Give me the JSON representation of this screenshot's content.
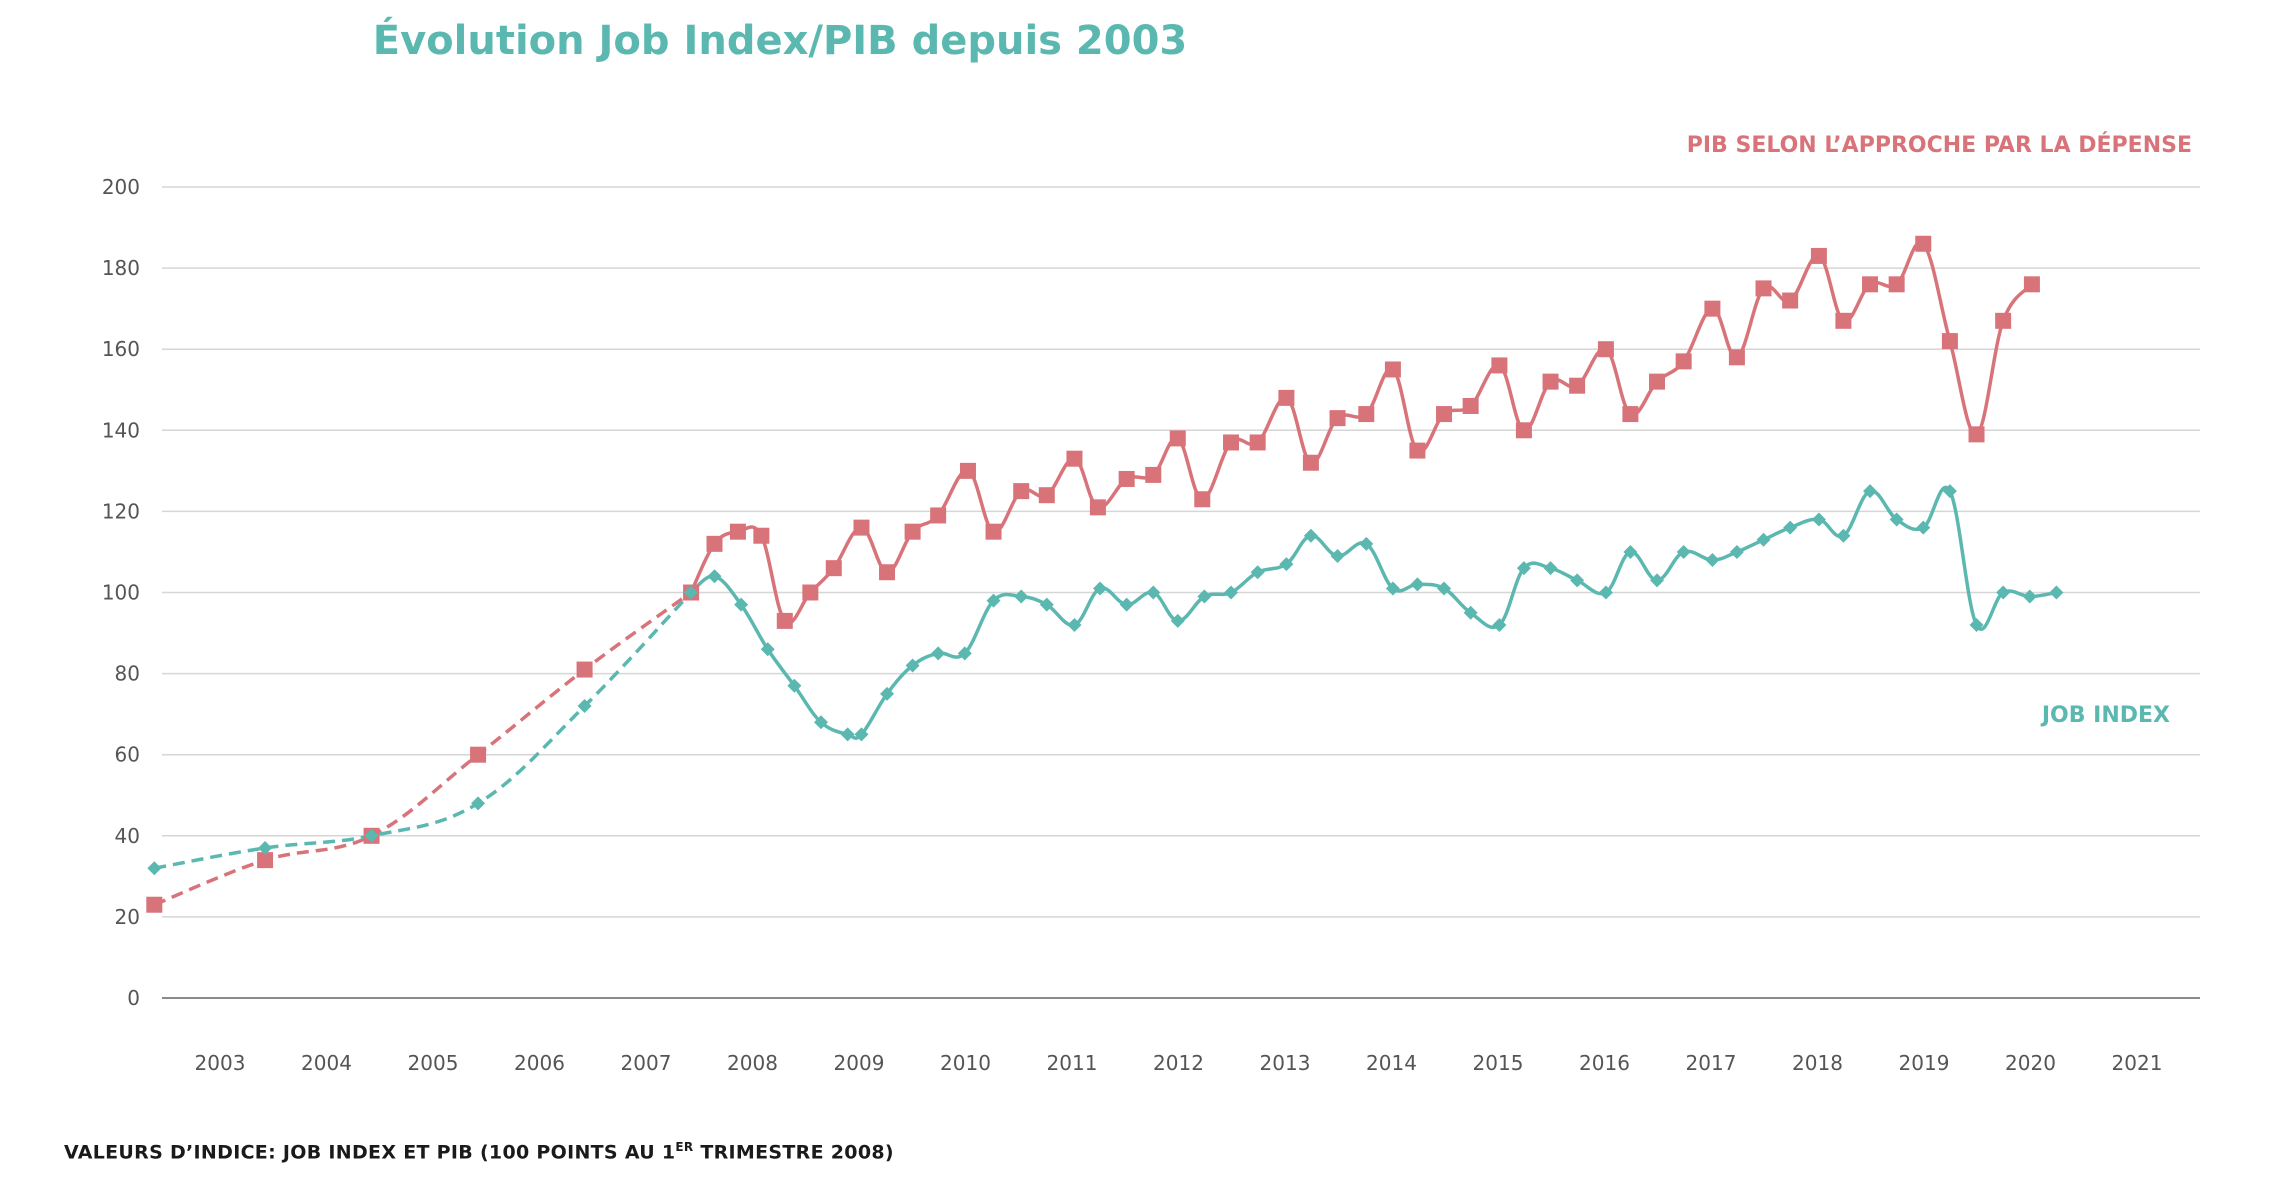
{
  "chart_data": {
    "type": "line",
    "title": "Évolution Job Index/PIB depuis 2003",
    "footnote_main": "VALEURS D’INDICE: JOB INDEX ET PIB (100 POINTS AU 1",
    "footnote_sup": "ER",
    "footnote_end": " TRIMESTRE 2008)",
    "xlabel": "",
    "ylabel": "",
    "ylim": [
      0,
      200
    ],
    "yticks": [
      0,
      20,
      40,
      60,
      80,
      100,
      120,
      140,
      160,
      180,
      200
    ],
    "xlim": [
      2002.5,
      2021.2
    ],
    "xticks": [
      2003,
      2004,
      2005,
      2006,
      2007,
      2008,
      2009,
      2010,
      2011,
      2012,
      2013,
      2014,
      2015,
      2016,
      2017,
      2018,
      2019,
      2020,
      2021
    ],
    "grid": true,
    "series": [
      {
        "name": "PIB SELON L’APPROCHE PAR LA DÉPENSE",
        "color": "#d9737a",
        "marker": "square",
        "dashed_until_index": 5,
        "x": [
          2002.74,
          2003.78,
          2004.78,
          2005.78,
          2006.78,
          2007.78,
          2008.0,
          2008.22,
          2008.44,
          2008.66,
          2008.9,
          2009.12,
          2009.38,
          2009.62,
          2009.86,
          2010.1,
          2010.38,
          2010.62,
          2010.88,
          2011.12,
          2011.38,
          2011.6,
          2011.87,
          2012.12,
          2012.35,
          2012.58,
          2012.85,
          2013.1,
          2013.37,
          2013.6,
          2013.85,
          2014.12,
          2014.37,
          2014.6,
          2014.85,
          2015.1,
          2015.37,
          2015.6,
          2015.85,
          2016.1,
          2016.37,
          2016.6,
          2016.85,
          2017.1,
          2017.37,
          2017.6,
          2017.85,
          2018.1,
          2018.37,
          2018.6,
          2018.85,
          2019.1,
          2019.35,
          2019.6,
          2019.85,
          2020.1,
          2020.37
        ],
        "values": [
          23,
          34,
          40,
          60,
          81,
          100,
          112,
          115,
          114,
          93,
          100,
          106,
          116,
          105,
          115,
          119,
          130,
          115,
          125,
          124,
          133,
          121,
          128,
          129,
          138,
          123,
          137,
          137,
          148,
          132,
          143,
          144,
          155,
          135,
          144,
          146,
          156,
          140,
          152,
          151,
          160,
          144,
          152,
          157,
          170,
          158,
          175,
          172,
          183,
          167,
          176,
          176,
          186,
          162,
          139,
          167,
          176
        ]
      },
      {
        "name": "JOB INDEX",
        "color": "#5bb8b0",
        "marker": "diamond",
        "dashed_until_index": 5,
        "x": [
          2002.74,
          2003.78,
          2004.78,
          2005.78,
          2006.78,
          2007.78,
          2008.0,
          2008.25,
          2008.5,
          2008.75,
          2009.0,
          2009.25,
          2009.38,
          2009.62,
          2009.86,
          2010.1,
          2010.35,
          2010.62,
          2010.88,
          2011.12,
          2011.38,
          2011.62,
          2011.87,
          2012.12,
          2012.35,
          2012.6,
          2012.85,
          2013.1,
          2013.37,
          2013.6,
          2013.85,
          2014.12,
          2014.37,
          2014.6,
          2014.85,
          2015.1,
          2015.37,
          2015.6,
          2015.85,
          2016.1,
          2016.37,
          2016.6,
          2016.85,
          2017.1,
          2017.37,
          2017.6,
          2017.85,
          2018.1,
          2018.37,
          2018.6,
          2018.85,
          2019.1,
          2019.35,
          2019.6,
          2019.85,
          2020.1,
          2020.35,
          2020.6
        ],
        "values": [
          32,
          37,
          40,
          48,
          72,
          100,
          104,
          97,
          86,
          77,
          68,
          65,
          65,
          75,
          82,
          85,
          85,
          98,
          99,
          97,
          92,
          101,
          97,
          100,
          93,
          99,
          100,
          105,
          107,
          114,
          109,
          112,
          101,
          102,
          101,
          95,
          92,
          106,
          106,
          103,
          100,
          110,
          103,
          110,
          108,
          110,
          113,
          116,
          118,
          114,
          125,
          118,
          116,
          125,
          92,
          100,
          99,
          100
        ]
      }
    ]
  }
}
